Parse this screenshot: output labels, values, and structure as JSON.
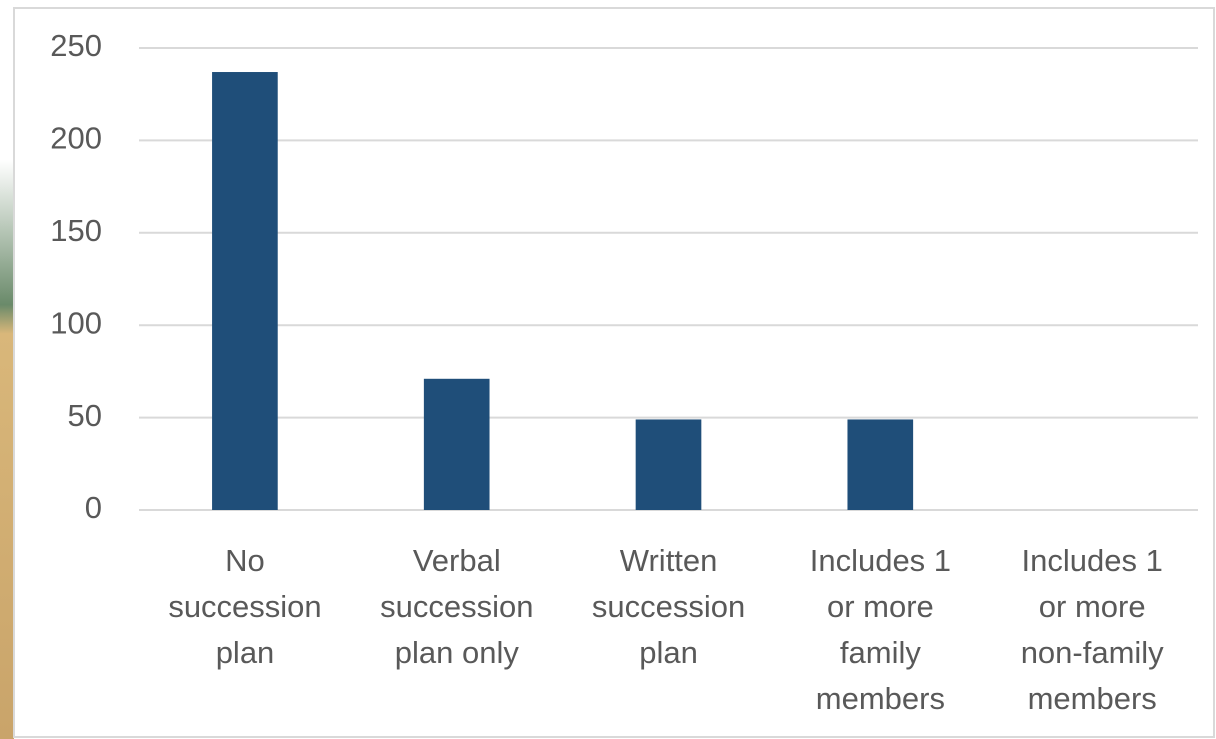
{
  "chart_data": {
    "type": "bar",
    "categories": [
      "No\nsuccession\nplan",
      "Verbal\nsuccession\nplan only",
      "Written\nsuccession\nplan",
      "Includes 1\nor more\nfamily\nmembers",
      "Includes 1\nor more\nnon-family\nmembers"
    ],
    "values": [
      237,
      71,
      49,
      49,
      0
    ],
    "color": "#1f4e79",
    "ylim": [
      0,
      250
    ],
    "yticks": [
      0,
      50,
      100,
      150,
      200,
      250
    ],
    "grid": true
  }
}
